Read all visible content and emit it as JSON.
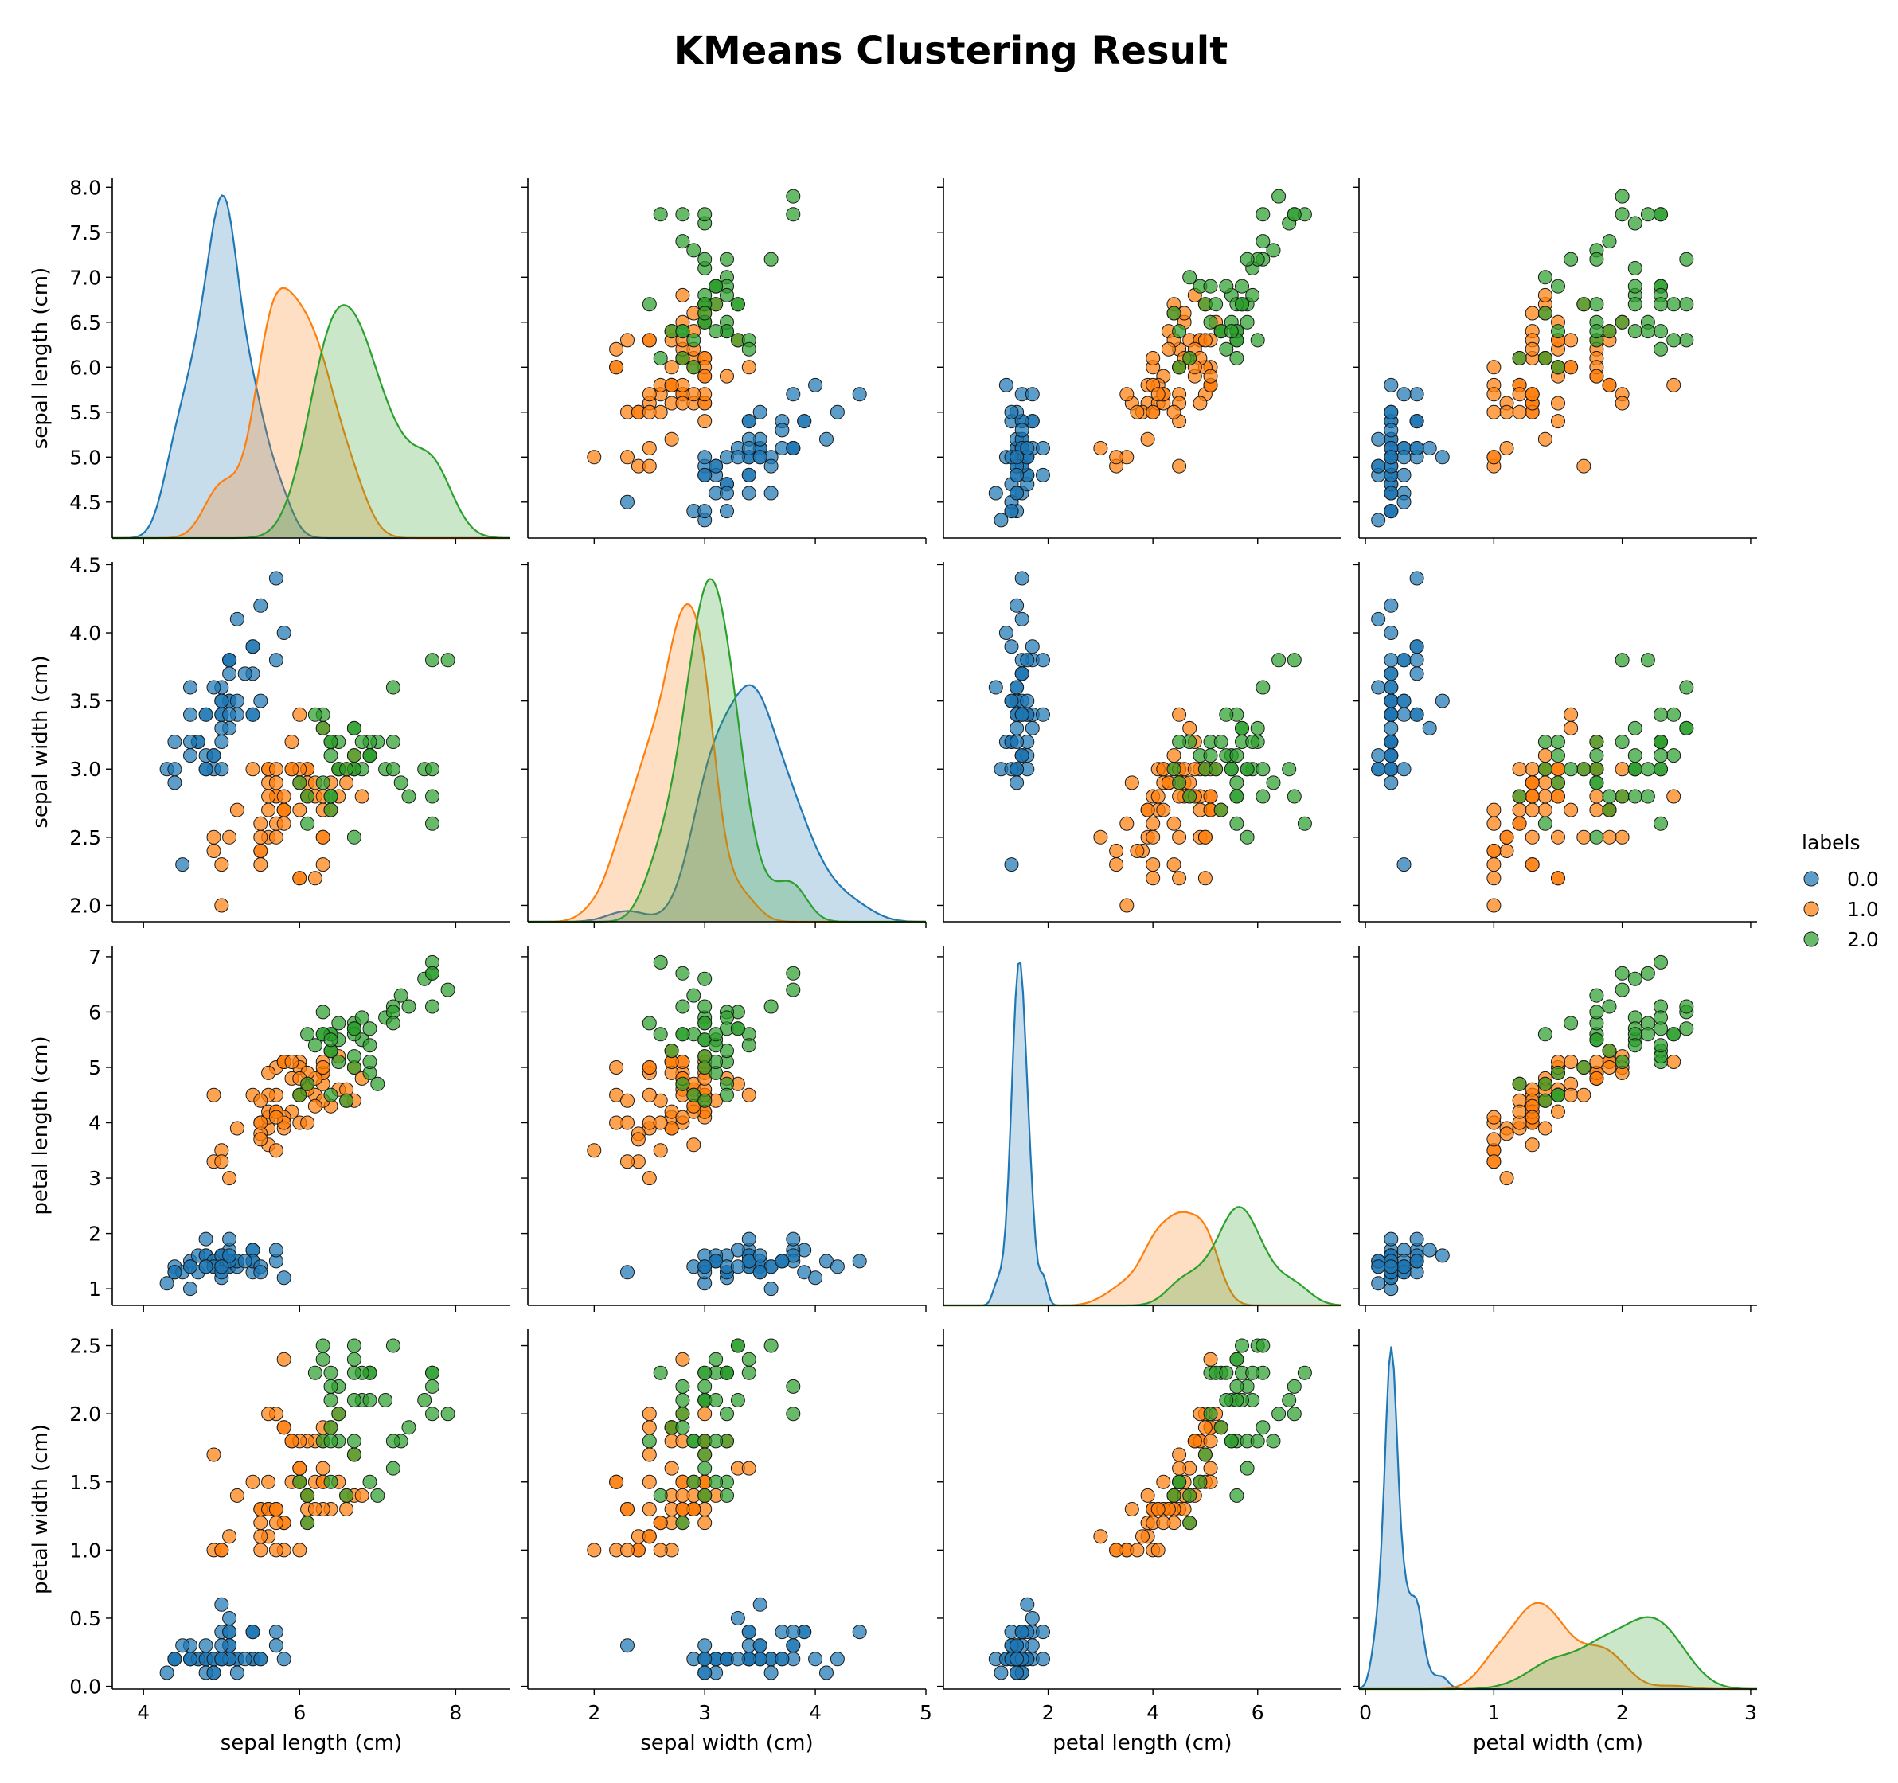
{
  "chart_data": {
    "type": "scatter",
    "subtype": "pairplot",
    "title": "KMeans Clustering Result",
    "variables": [
      "sepal length (cm)",
      "sepal width (cm)",
      "petal length (cm)",
      "petal width (cm)"
    ],
    "diagonal": "kde",
    "legend": {
      "title": "labels",
      "placement": "right",
      "entries": [
        {
          "label": "0.0",
          "color": "#1f77b4"
        },
        {
          "label": "1.0",
          "color": "#ff7f0e"
        },
        {
          "label": "2.0",
          "color": "#2ca02c"
        }
      ]
    },
    "axes": {
      "sepal length (cm)": {
        "lim": [
          3.6,
          8.7
        ],
        "ticks": [
          "4",
          "6",
          "8"
        ],
        "tick_values": [
          4,
          6,
          8
        ],
        "row_ticks": [
          "4.5",
          "5.0",
          "5.5",
          "6.0",
          "6.5",
          "7.0",
          "7.5",
          "8.0"
        ],
        "row_tick_values": [
          4.5,
          5.0,
          5.5,
          6.0,
          6.5,
          7.0,
          7.5,
          8.0
        ],
        "row_lim": [
          4.1,
          8.1
        ]
      },
      "sepal width (cm)": {
        "lim": [
          1.4,
          5.0
        ],
        "ticks": [
          "2",
          "3",
          "4",
          "5"
        ],
        "tick_values": [
          2,
          3,
          4,
          5
        ],
        "row_ticks": [
          "2.0",
          "2.5",
          "3.0",
          "3.5",
          "4.0",
          "4.5"
        ],
        "row_tick_values": [
          2.0,
          2.5,
          3.0,
          3.5,
          4.0,
          4.5
        ],
        "row_lim": [
          1.88,
          4.52
        ]
      },
      "petal length (cm)": {
        "lim": [
          0.0,
          7.6
        ],
        "ticks": [
          "2",
          "4",
          "6"
        ],
        "tick_values": [
          2,
          4,
          6
        ],
        "row_ticks": [
          "1",
          "2",
          "3",
          "4",
          "5",
          "6",
          "7"
        ],
        "row_tick_values": [
          1,
          2,
          3,
          4,
          5,
          6,
          7
        ],
        "row_lim": [
          0.7,
          7.2
        ]
      },
      "petal width (cm)": {
        "lim": [
          -0.05,
          3.05
        ],
        "ticks": [
          "0",
          "1",
          "2",
          "3"
        ],
        "tick_values": [
          0,
          1,
          2,
          3
        ],
        "row_ticks": [
          "0.0",
          "0.5",
          "1.0",
          "1.5",
          "2.0",
          "2.5"
        ],
        "row_tick_values": [
          0.0,
          0.5,
          1.0,
          1.5,
          2.0,
          2.5
        ],
        "row_lim": [
          -0.02,
          2.62
        ]
      }
    },
    "series": [
      {
        "name": "0.0",
        "color": "#1f77b4",
        "points": [
          [
            5.1,
            3.5,
            1.4,
            0.2
          ],
          [
            4.9,
            3.0,
            1.4,
            0.2
          ],
          [
            4.7,
            3.2,
            1.3,
            0.2
          ],
          [
            4.6,
            3.1,
            1.5,
            0.2
          ],
          [
            5.0,
            3.6,
            1.4,
            0.2
          ],
          [
            5.4,
            3.9,
            1.7,
            0.4
          ],
          [
            4.6,
            3.4,
            1.4,
            0.3
          ],
          [
            5.0,
            3.4,
            1.5,
            0.2
          ],
          [
            4.4,
            2.9,
            1.4,
            0.2
          ],
          [
            4.9,
            3.1,
            1.5,
            0.1
          ],
          [
            5.4,
            3.7,
            1.5,
            0.2
          ],
          [
            4.8,
            3.4,
            1.6,
            0.2
          ],
          [
            4.8,
            3.0,
            1.4,
            0.1
          ],
          [
            4.3,
            3.0,
            1.1,
            0.1
          ],
          [
            5.8,
            4.0,
            1.2,
            0.2
          ],
          [
            5.7,
            4.4,
            1.5,
            0.4
          ],
          [
            5.4,
            3.9,
            1.3,
            0.4
          ],
          [
            5.1,
            3.5,
            1.4,
            0.3
          ],
          [
            5.7,
            3.8,
            1.7,
            0.3
          ],
          [
            5.1,
            3.8,
            1.5,
            0.3
          ],
          [
            5.4,
            3.4,
            1.7,
            0.2
          ],
          [
            5.1,
            3.7,
            1.5,
            0.4
          ],
          [
            4.6,
            3.6,
            1.0,
            0.2
          ],
          [
            5.1,
            3.3,
            1.7,
            0.5
          ],
          [
            4.8,
            3.4,
            1.9,
            0.2
          ],
          [
            5.0,
            3.0,
            1.6,
            0.2
          ],
          [
            5.0,
            3.4,
            1.6,
            0.4
          ],
          [
            5.2,
            3.5,
            1.5,
            0.2
          ],
          [
            5.2,
            3.4,
            1.4,
            0.2
          ],
          [
            4.7,
            3.2,
            1.6,
            0.2
          ],
          [
            4.8,
            3.1,
            1.6,
            0.2
          ],
          [
            5.4,
            3.4,
            1.5,
            0.4
          ],
          [
            5.2,
            4.1,
            1.5,
            0.1
          ],
          [
            5.5,
            4.2,
            1.4,
            0.2
          ],
          [
            4.9,
            3.1,
            1.5,
            0.2
          ],
          [
            5.0,
            3.2,
            1.2,
            0.2
          ],
          [
            5.5,
            3.5,
            1.3,
            0.2
          ],
          [
            4.9,
            3.6,
            1.4,
            0.1
          ],
          [
            4.4,
            3.0,
            1.3,
            0.2
          ],
          [
            5.1,
            3.4,
            1.5,
            0.2
          ],
          [
            5.0,
            3.5,
            1.3,
            0.3
          ],
          [
            4.5,
            2.3,
            1.3,
            0.3
          ],
          [
            4.4,
            3.2,
            1.3,
            0.2
          ],
          [
            5.0,
            3.5,
            1.6,
            0.6
          ],
          [
            5.1,
            3.8,
            1.9,
            0.4
          ],
          [
            4.8,
            3.0,
            1.4,
            0.3
          ],
          [
            5.1,
            3.8,
            1.6,
            0.2
          ],
          [
            4.6,
            3.2,
            1.4,
            0.2
          ],
          [
            5.3,
            3.7,
            1.5,
            0.2
          ],
          [
            5.0,
            3.3,
            1.4,
            0.2
          ]
        ]
      },
      {
        "name": "1.0",
        "color": "#ff7f0e",
        "points": [
          [
            5.5,
            2.3,
            4.0,
            1.3
          ],
          [
            6.5,
            2.8,
            4.6,
            1.5
          ],
          [
            5.7,
            2.8,
            4.5,
            1.3
          ],
          [
            6.3,
            3.3,
            4.7,
            1.6
          ],
          [
            4.9,
            2.4,
            3.3,
            1.0
          ],
          [
            6.6,
            2.9,
            4.6,
            1.3
          ],
          [
            5.2,
            2.7,
            3.9,
            1.4
          ],
          [
            5.0,
            2.0,
            3.5,
            1.0
          ],
          [
            5.9,
            3.0,
            4.2,
            1.5
          ],
          [
            6.0,
            2.2,
            4.0,
            1.0
          ],
          [
            6.1,
            2.9,
            4.7,
            1.4
          ],
          [
            5.6,
            2.9,
            3.6,
            1.3
          ],
          [
            6.7,
            3.1,
            4.4,
            1.4
          ],
          [
            5.6,
            3.0,
            4.5,
            1.5
          ],
          [
            5.8,
            2.7,
            4.1,
            1.0
          ],
          [
            6.2,
            2.2,
            4.5,
            1.5
          ],
          [
            5.6,
            2.5,
            3.9,
            1.1
          ],
          [
            5.9,
            3.2,
            4.8,
            1.8
          ],
          [
            6.1,
            2.8,
            4.0,
            1.3
          ],
          [
            6.3,
            2.5,
            4.9,
            1.5
          ],
          [
            6.1,
            2.8,
            4.7,
            1.2
          ],
          [
            6.4,
            2.9,
            4.3,
            1.3
          ],
          [
            6.6,
            3.0,
            4.4,
            1.4
          ],
          [
            6.8,
            2.8,
            4.8,
            1.4
          ],
          [
            6.0,
            2.9,
            4.5,
            1.5
          ],
          [
            5.7,
            2.6,
            3.5,
            1.0
          ],
          [
            5.5,
            2.4,
            3.8,
            1.1
          ],
          [
            5.5,
            2.4,
            3.7,
            1.0
          ],
          [
            5.8,
            2.7,
            3.9,
            1.2
          ],
          [
            6.0,
            2.7,
            5.1,
            1.6
          ],
          [
            5.4,
            3.0,
            4.5,
            1.5
          ],
          [
            6.0,
            3.4,
            4.5,
            1.6
          ],
          [
            6.3,
            2.3,
            4.4,
            1.3
          ],
          [
            5.6,
            3.0,
            4.1,
            1.3
          ],
          [
            5.5,
            2.5,
            4.0,
            1.3
          ],
          [
            5.5,
            2.6,
            4.4,
            1.2
          ],
          [
            6.1,
            3.0,
            4.6,
            1.4
          ],
          [
            5.8,
            2.6,
            4.0,
            1.2
          ],
          [
            5.0,
            2.3,
            3.3,
            1.0
          ],
          [
            5.6,
            2.7,
            4.2,
            1.3
          ],
          [
            5.7,
            3.0,
            4.2,
            1.2
          ],
          [
            5.7,
            2.9,
            4.2,
            1.3
          ],
          [
            6.2,
            2.9,
            4.3,
            1.3
          ],
          [
            5.1,
            2.5,
            3.0,
            1.1
          ],
          [
            5.7,
            2.8,
            4.1,
            1.3
          ],
          [
            5.8,
            2.7,
            5.1,
            1.9
          ],
          [
            4.9,
            2.5,
            4.5,
            1.7
          ],
          [
            5.7,
            2.5,
            5.0,
            2.0
          ],
          [
            5.8,
            2.8,
            5.1,
            2.4
          ],
          [
            6.0,
            2.2,
            5.0,
            1.5
          ],
          [
            5.6,
            2.8,
            4.9,
            2.0
          ],
          [
            6.3,
            2.7,
            4.9,
            1.8
          ],
          [
            6.2,
            2.8,
            4.8,
            1.8
          ],
          [
            6.1,
            3.0,
            4.9,
            1.8
          ],
          [
            6.3,
            2.8,
            5.1,
            1.5
          ],
          [
            6.0,
            3.0,
            4.8,
            1.8
          ],
          [
            5.8,
            2.7,
            5.1,
            1.9
          ],
          [
            6.3,
            2.5,
            5.0,
            1.9
          ],
          [
            5.9,
            3.0,
            5.1,
            1.8
          ],
          [
            6.4,
            2.7,
            5.3,
            1.9
          ],
          [
            6.5,
            3.0,
            5.2,
            2.0
          ],
          [
            6.7,
            3.0,
            5.0,
            1.7
          ]
        ]
      },
      {
        "name": "2.0",
        "color": "#2ca02c",
        "points": [
          [
            7.0,
            3.2,
            4.7,
            1.4
          ],
          [
            6.4,
            3.2,
            4.5,
            1.5
          ],
          [
            6.9,
            3.1,
            4.9,
            1.5
          ],
          [
            6.7,
            3.0,
            5.0,
            1.7
          ],
          [
            6.3,
            3.3,
            6.0,
            2.5
          ],
          [
            7.1,
            3.0,
            5.9,
            2.1
          ],
          [
            6.3,
            2.9,
            5.6,
            1.8
          ],
          [
            6.5,
            3.0,
            5.8,
            2.2
          ],
          [
            7.6,
            3.0,
            6.6,
            2.1
          ],
          [
            7.3,
            2.9,
            6.3,
            1.8
          ],
          [
            6.7,
            2.5,
            5.8,
            1.8
          ],
          [
            7.2,
            3.6,
            6.1,
            2.5
          ],
          [
            6.5,
            3.2,
            5.1,
            2.0
          ],
          [
            6.4,
            2.7,
            5.3,
            1.9
          ],
          [
            6.8,
            3.0,
            5.5,
            2.1
          ],
          [
            6.4,
            3.2,
            5.3,
            2.3
          ],
          [
            6.5,
            3.0,
            5.5,
            1.8
          ],
          [
            7.7,
            3.8,
            6.7,
            2.2
          ],
          [
            7.7,
            2.6,
            6.9,
            2.3
          ],
          [
            6.9,
            3.2,
            5.7,
            2.3
          ],
          [
            7.7,
            2.8,
            6.7,
            2.0
          ],
          [
            6.7,
            3.3,
            5.7,
            2.1
          ],
          [
            7.2,
            3.2,
            6.0,
            1.8
          ],
          [
            6.4,
            2.8,
            5.6,
            2.1
          ],
          [
            7.2,
            3.0,
            5.8,
            1.6
          ],
          [
            7.4,
            2.8,
            6.1,
            1.9
          ],
          [
            7.9,
            3.8,
            6.4,
            2.0
          ],
          [
            6.4,
            2.8,
            5.6,
            2.2
          ],
          [
            6.1,
            2.6,
            5.6,
            1.4
          ],
          [
            7.7,
            3.0,
            6.1,
            2.3
          ],
          [
            6.3,
            3.4,
            5.6,
            2.4
          ],
          [
            6.4,
            3.1,
            5.5,
            1.8
          ],
          [
            6.9,
            3.1,
            5.4,
            2.1
          ],
          [
            6.7,
            3.1,
            5.6,
            2.4
          ],
          [
            6.9,
            3.1,
            5.1,
            2.3
          ],
          [
            6.8,
            3.2,
            5.9,
            2.3
          ],
          [
            6.7,
            3.3,
            5.7,
            2.5
          ],
          [
            6.7,
            3.0,
            5.2,
            2.3
          ],
          [
            6.2,
            3.4,
            5.4,
            2.3
          ],
          [
            6.1,
            2.8,
            4.7,
            1.2
          ],
          [
            6.0,
            2.9,
            4.5,
            1.5
          ],
          [
            6.6,
            3.0,
            4.4,
            1.4
          ]
        ]
      }
    ]
  }
}
